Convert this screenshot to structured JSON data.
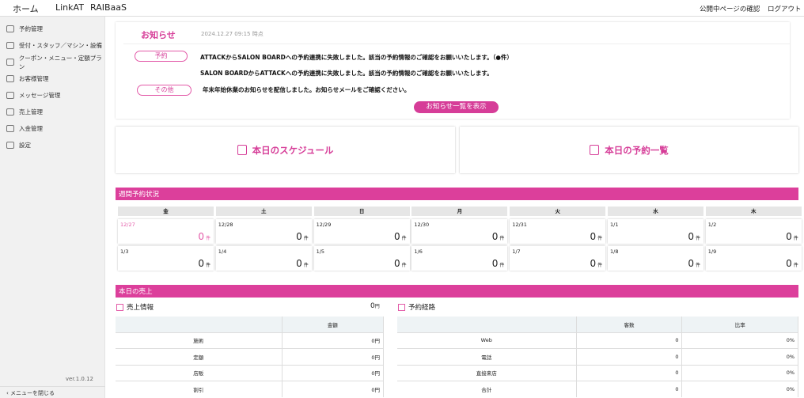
{
  "topbar": {
    "tabs": [
      "ホーム",
      "LinkAT",
      "RAIBaaS"
    ],
    "links": [
      "公開中ページの確認",
      "ログアウト"
    ]
  },
  "sidebar": {
    "items": [
      {
        "label": "予約管理",
        "icon": "calendar-icon"
      },
      {
        "label": "受付・スタッフ／マシン・設備",
        "icon": "staff-icon"
      },
      {
        "label": "クーポン・メニュー・定額プラン",
        "icon": "coupon-icon"
      },
      {
        "label": "お客様管理",
        "icon": "customer-icon"
      },
      {
        "label": "メッセージ管理",
        "icon": "message-icon"
      },
      {
        "label": "売上管理",
        "icon": "sales-icon"
      },
      {
        "label": "入金管理",
        "icon": "payment-icon"
      },
      {
        "label": "設定",
        "icon": "gear-icon"
      }
    ],
    "version": "ver.1.0.12",
    "close_label": "メニューを閉じる"
  },
  "notice": {
    "title": "お知らせ",
    "timestamp": "2024.12.27 09:15 時点",
    "badges": [
      "予約",
      "その他"
    ],
    "messages": [
      "ATTACKからSALON BOARDへの予約連携に失敗しました。該当の予約情報のご確認をお願いいたします。（●件）",
      "SALON BOARDからATTACKへの予約連携に失敗しました。該当の予約情報のご確認をお願いいたします。",
      "年末年始休業のお知らせを配信しました。お知らせメールをご確認ください。"
    ],
    "list_button": "お知らせ一覧を表示"
  },
  "buttons": {
    "schedule": "本日のスケジュール",
    "reservations": "本日の予約一覧"
  },
  "weekly": {
    "title": "週間予約状況",
    "days": [
      "金",
      "土",
      "日",
      "月",
      "火",
      "水",
      "木"
    ],
    "unit": "件",
    "dates": [
      [
        "12/27",
        "12/28",
        "12/29",
        "12/30",
        "12/31",
        "1/1",
        "1/2"
      ],
      [
        "1/3",
        "1/4",
        "1/5",
        "1/6",
        "1/7",
        "1/8",
        "1/9"
      ]
    ],
    "counts": [
      [
        "0",
        "0",
        "0",
        "0",
        "0",
        "0",
        "0"
      ],
      [
        "0",
        "0",
        "0",
        "0",
        "0",
        "0",
        "0"
      ]
    ]
  },
  "sales": {
    "title": "本日の売上",
    "info": {
      "title": "売上情報",
      "total": "0",
      "unit": "円",
      "header": "金額",
      "rows": [
        [
          "施術",
          "0円"
        ],
        [
          "定額",
          "0円"
        ],
        [
          "店販",
          "0円"
        ],
        [
          "割引",
          "0円"
        ]
      ]
    },
    "route": {
      "title": "予約経路",
      "headers": [
        "客数",
        "比率"
      ],
      "rows": [
        [
          "Web",
          "0",
          "0%"
        ],
        [
          "電話",
          "0",
          "0%"
        ],
        [
          "直接来店",
          "0",
          "0%"
        ],
        [
          "合計",
          "0",
          "0%"
        ]
      ]
    }
  },
  "colors": {
    "accent": "#dc3f9b"
  }
}
